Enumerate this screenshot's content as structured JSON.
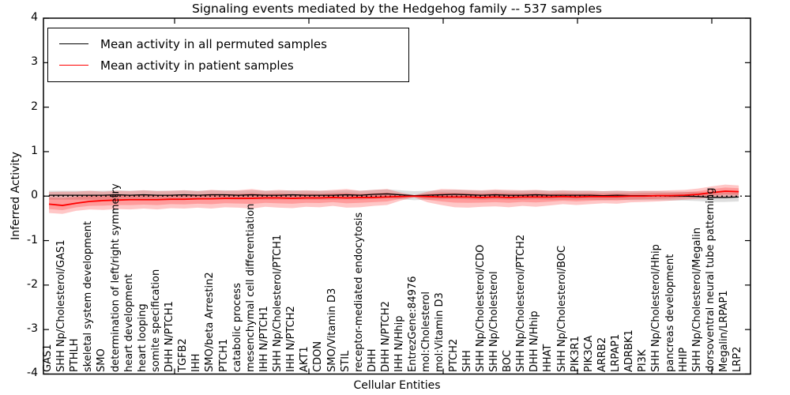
{
  "chart_data": {
    "type": "line",
    "title": "Signaling events mediated by the Hedgehog family -- 537 samples",
    "xlabel": "Cellular Entities",
    "ylabel": "Inferred Activity",
    "ylim": [
      -4,
      4
    ],
    "y_ticks": [
      4,
      3,
      2,
      1,
      0,
      -1,
      -2,
      -3,
      -4
    ],
    "grid": false,
    "legend_position": "upper left",
    "zero_line": "dashed black at y=0",
    "colors": {
      "permuted_line": "#000000",
      "patient_line": "#ff0000",
      "patient_band": "rgba(255,0,0,0.22)",
      "permuted_band": "rgba(0,0,0,0.13)"
    },
    "categories": [
      "GAS1",
      "SHH Np/Cholesterol/GAS1",
      "PTHLH",
      "skeletal system development",
      "SMO",
      "determination of left/right symmetry",
      "heart development",
      "heart looping",
      "somite specification",
      "DHH N/PTCH1",
      "TGFB2",
      "IHH",
      "SMO/beta Arrestin2",
      "PTCH1",
      "catabolic process",
      "mesenchymal cell differentiation",
      "IHH N/PTCH1",
      "SHH Np/Cholesterol/PTCH1",
      "IHH N/PTCH2",
      "AKT1",
      "CDON",
      "SMO/Vitamin D3",
      "STIL",
      "receptor-mediated endocytosis",
      "DHH",
      "DHH N/PTCH2",
      "IHH N/Hhip",
      "EntrezGene:84976",
      "mol:Cholesterol",
      "mol:Vitamin D3",
      "PTCH2",
      "SHH",
      "SHH Np/Cholesterol/CDO",
      "SHH Np/Cholesterol",
      "BOC",
      "SHH Np/Cholesterol/PTCH2",
      "DHH N/Hhip",
      "HHAT",
      "SHH Np/Cholesterol/BOC",
      "PIK3R1",
      "PIK3CA",
      "ARRB2",
      "LRPAP1",
      "ADRBK1",
      "PI3K",
      "SHH Np/Cholesterol/Hhip",
      "pancreas development",
      "HHIP",
      "SHH Np/Cholesterol/Megalin",
      "dorsoventral neural tube patterning",
      "Megalin/LRPAP1",
      "LRP2"
    ],
    "series": [
      {
        "name": "Mean activity in all permuted samples",
        "color": "#000000",
        "values": [
          0.02,
          0.02,
          0.02,
          0.02,
          0.02,
          0.03,
          0.02,
          0.03,
          0.02,
          0.02,
          0.03,
          0.02,
          0.03,
          0.03,
          0.02,
          0.03,
          0.02,
          0.02,
          0.03,
          0.02,
          0.02,
          0.02,
          0.03,
          0.02,
          0.04,
          0.05,
          0.03,
          0.01,
          0.02,
          0.03,
          0.04,
          0.03,
          0.02,
          0.03,
          0.02,
          0.02,
          0.03,
          0.02,
          0.02,
          0.02,
          0.02,
          0.01,
          0.02,
          0.01,
          0.01,
          0.01,
          0.0,
          0.0,
          -0.01,
          -0.03,
          -0.03,
          -0.02
        ],
        "band_halfwidth": 0.1
      },
      {
        "name": "Mean activity in patient samples",
        "color": "#ff0000",
        "values": [
          -0.18,
          -0.21,
          -0.16,
          -0.12,
          -0.1,
          -0.09,
          -0.08,
          -0.08,
          -0.08,
          -0.07,
          -0.07,
          -0.06,
          -0.06,
          -0.05,
          -0.05,
          -0.05,
          -0.04,
          -0.04,
          -0.05,
          -0.04,
          -0.04,
          -0.03,
          -0.04,
          -0.03,
          -0.03,
          -0.02,
          -0.01,
          0.0,
          -0.01,
          -0.02,
          -0.02,
          -0.02,
          -0.03,
          -0.02,
          -0.03,
          -0.02,
          -0.02,
          -0.02,
          -0.01,
          -0.02,
          -0.01,
          -0.01,
          -0.01,
          0.0,
          0.0,
          0.01,
          0.01,
          0.02,
          0.04,
          0.08,
          0.11,
          0.1
        ],
        "band_upper": [
          0.09,
          0.1,
          0.1,
          0.12,
          0.1,
          0.12,
          0.11,
          0.13,
          0.11,
          0.12,
          0.13,
          0.11,
          0.14,
          0.12,
          0.13,
          0.16,
          0.12,
          0.14,
          0.12,
          0.13,
          0.12,
          0.14,
          0.16,
          0.12,
          0.14,
          0.16,
          0.08,
          0.02,
          0.1,
          0.16,
          0.15,
          0.14,
          0.13,
          0.15,
          0.14,
          0.13,
          0.14,
          0.12,
          0.13,
          0.12,
          0.12,
          0.11,
          0.12,
          0.11,
          0.12,
          0.12,
          0.13,
          0.14,
          0.17,
          0.22,
          0.26,
          0.24
        ],
        "band_lower": [
          -0.38,
          -0.4,
          -0.33,
          -0.3,
          -0.31,
          -0.29,
          -0.3,
          -0.28,
          -0.3,
          -0.27,
          -0.28,
          -0.26,
          -0.28,
          -0.25,
          -0.26,
          -0.28,
          -0.24,
          -0.26,
          -0.27,
          -0.24,
          -0.25,
          -0.22,
          -0.26,
          -0.25,
          -0.22,
          -0.2,
          -0.1,
          -0.03,
          -0.14,
          -0.2,
          -0.25,
          -0.26,
          -0.24,
          -0.23,
          -0.25,
          -0.22,
          -0.24,
          -0.21,
          -0.18,
          -0.2,
          -0.18,
          -0.16,
          -0.17,
          -0.14,
          -0.13,
          -0.12,
          -0.1,
          -0.08,
          -0.06,
          -0.04,
          -0.02,
          -0.03
        ]
      }
    ]
  },
  "legend": {
    "entries": [
      {
        "label": "Mean activity in all permuted samples",
        "color": "#000000"
      },
      {
        "label": "Mean activity in patient samples",
        "color": "#ff0000"
      }
    ]
  },
  "labels": {
    "title": "Signaling events mediated by the Hedgehog family -- 537 samples",
    "ylabel": "Inferred Activity",
    "xlabel": "Cellular Entities"
  }
}
